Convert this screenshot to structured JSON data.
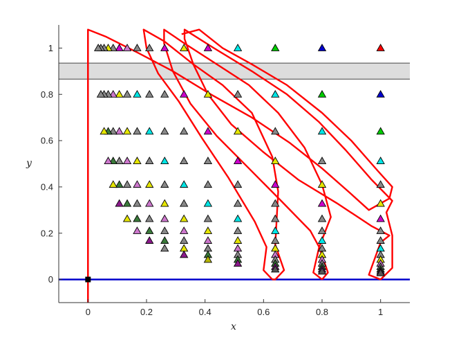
{
  "chart_data": {
    "type": "scatter",
    "xlabel": "x",
    "ylabel": "y",
    "xlim": [
      -0.1,
      1.1
    ],
    "ylim": [
      -0.1,
      1.1
    ],
    "xticks": [
      "0",
      "0.2",
      "0.4",
      "0.6",
      "0.8",
      "1"
    ],
    "yticks": [
      "0",
      "0.2",
      "0.4",
      "0.6",
      "0.8",
      "1"
    ],
    "xtick_values": [
      0,
      0.2,
      0.4,
      0.6,
      0.8,
      1
    ],
    "ytick_values": [
      0,
      0.2,
      0.4,
      0.6,
      0.8,
      1
    ],
    "band": {
      "y0": 0.866,
      "y1": 0.935,
      "color": "#dddddd"
    },
    "hline": {
      "y": 0,
      "color": "#0000cc"
    },
    "vline": {
      "x": 0,
      "y0": -0.1,
      "y1": 1.08,
      "color": "#ff0000"
    },
    "origin_marker": {
      "x": 0,
      "y": 0,
      "color": "#000000"
    },
    "triangle_colors": [
      "#ff0000",
      "#0000cc",
      "#00cc00",
      "#00e5e5",
      "#cc00cc",
      "#e5e500",
      "#888888",
      "#cc77cc",
      "#3a7a3a",
      "#008b8b",
      "#8b1a8b",
      "#b8b800",
      "#555555"
    ],
    "triangles": [
      {
        "x": 1.0,
        "y": 1.0,
        "c": 0
      },
      {
        "x": 0.8,
        "y": 1.0,
        "c": 1
      },
      {
        "x": 0.64,
        "y": 1.0,
        "c": 2
      },
      {
        "x": 0.512,
        "y": 1.0,
        "c": 3
      },
      {
        "x": 0.41,
        "y": 1.0,
        "c": 4
      },
      {
        "x": 0.328,
        "y": 1.0,
        "c": 5
      },
      {
        "x": 0.262,
        "y": 1.0,
        "c": 4
      },
      {
        "x": 0.21,
        "y": 1.0,
        "c": 6
      },
      {
        "x": 0.168,
        "y": 1.0,
        "c": 6
      },
      {
        "x": 0.134,
        "y": 1.0,
        "c": 7
      },
      {
        "x": 0.107,
        "y": 1.0,
        "c": 4
      },
      {
        "x": 0.086,
        "y": 1.0,
        "c": 6
      },
      {
        "x": 0.069,
        "y": 1.0,
        "c": 5
      },
      {
        "x": 0.055,
        "y": 1.0,
        "c": 6
      },
      {
        "x": 0.044,
        "y": 1.0,
        "c": 6
      },
      {
        "x": 0.035,
        "y": 1.0,
        "c": 6
      },
      {
        "x": 1.0,
        "y": 0.8,
        "c": 1
      },
      {
        "x": 0.8,
        "y": 0.8,
        "c": 2
      },
      {
        "x": 0.64,
        "y": 0.8,
        "c": 3
      },
      {
        "x": 0.512,
        "y": 0.8,
        "c": 6
      },
      {
        "x": 0.41,
        "y": 0.8,
        "c": 5
      },
      {
        "x": 0.328,
        "y": 0.8,
        "c": 4
      },
      {
        "x": 0.262,
        "y": 0.8,
        "c": 6
      },
      {
        "x": 0.21,
        "y": 0.8,
        "c": 6
      },
      {
        "x": 0.168,
        "y": 0.8,
        "c": 3
      },
      {
        "x": 0.134,
        "y": 0.8,
        "c": 6
      },
      {
        "x": 0.107,
        "y": 0.8,
        "c": 5
      },
      {
        "x": 0.086,
        "y": 0.8,
        "c": 7
      },
      {
        "x": 0.069,
        "y": 0.8,
        "c": 6
      },
      {
        "x": 0.055,
        "y": 0.8,
        "c": 6
      },
      {
        "x": 0.044,
        "y": 0.8,
        "c": 6
      },
      {
        "x": 1.0,
        "y": 0.64,
        "c": 2
      },
      {
        "x": 0.8,
        "y": 0.64,
        "c": 3
      },
      {
        "x": 0.64,
        "y": 0.64,
        "c": 6
      },
      {
        "x": 0.512,
        "y": 0.64,
        "c": 5
      },
      {
        "x": 0.41,
        "y": 0.64,
        "c": 4
      },
      {
        "x": 0.328,
        "y": 0.64,
        "c": 6
      },
      {
        "x": 0.262,
        "y": 0.64,
        "c": 6
      },
      {
        "x": 0.21,
        "y": 0.64,
        "c": 3
      },
      {
        "x": 0.168,
        "y": 0.64,
        "c": 6
      },
      {
        "x": 0.134,
        "y": 0.64,
        "c": 5
      },
      {
        "x": 0.107,
        "y": 0.64,
        "c": 7
      },
      {
        "x": 0.086,
        "y": 0.64,
        "c": 6
      },
      {
        "x": 0.069,
        "y": 0.64,
        "c": 8
      },
      {
        "x": 0.055,
        "y": 0.64,
        "c": 5
      },
      {
        "x": 1.0,
        "y": 0.512,
        "c": 3
      },
      {
        "x": 0.8,
        "y": 0.512,
        "c": 6
      },
      {
        "x": 0.64,
        "y": 0.512,
        "c": 5
      },
      {
        "x": 0.512,
        "y": 0.512,
        "c": 4
      },
      {
        "x": 0.41,
        "y": 0.512,
        "c": 6
      },
      {
        "x": 0.328,
        "y": 0.512,
        "c": 6
      },
      {
        "x": 0.262,
        "y": 0.512,
        "c": 3
      },
      {
        "x": 0.21,
        "y": 0.512,
        "c": 6
      },
      {
        "x": 0.168,
        "y": 0.512,
        "c": 5
      },
      {
        "x": 0.134,
        "y": 0.512,
        "c": 7
      },
      {
        "x": 0.107,
        "y": 0.512,
        "c": 6
      },
      {
        "x": 0.086,
        "y": 0.512,
        "c": 8
      },
      {
        "x": 0.069,
        "y": 0.512,
        "c": 7
      },
      {
        "x": 1.0,
        "y": 0.41,
        "c": 6
      },
      {
        "x": 0.8,
        "y": 0.41,
        "c": 5
      },
      {
        "x": 0.64,
        "y": 0.41,
        "c": 4
      },
      {
        "x": 0.512,
        "y": 0.41,
        "c": 6
      },
      {
        "x": 0.41,
        "y": 0.41,
        "c": 6
      },
      {
        "x": 0.328,
        "y": 0.41,
        "c": 3
      },
      {
        "x": 0.262,
        "y": 0.41,
        "c": 6
      },
      {
        "x": 0.21,
        "y": 0.41,
        "c": 5
      },
      {
        "x": 0.168,
        "y": 0.41,
        "c": 7
      },
      {
        "x": 0.134,
        "y": 0.41,
        "c": 6
      },
      {
        "x": 0.107,
        "y": 0.41,
        "c": 8
      },
      {
        "x": 0.086,
        "y": 0.41,
        "c": 5
      },
      {
        "x": 1.0,
        "y": 0.328,
        "c": 5
      },
      {
        "x": 0.8,
        "y": 0.328,
        "c": 4
      },
      {
        "x": 0.64,
        "y": 0.328,
        "c": 6
      },
      {
        "x": 0.512,
        "y": 0.328,
        "c": 6
      },
      {
        "x": 0.41,
        "y": 0.328,
        "c": 3
      },
      {
        "x": 0.328,
        "y": 0.328,
        "c": 6
      },
      {
        "x": 0.262,
        "y": 0.328,
        "c": 5
      },
      {
        "x": 0.21,
        "y": 0.328,
        "c": 7
      },
      {
        "x": 0.168,
        "y": 0.328,
        "c": 6
      },
      {
        "x": 0.134,
        "y": 0.328,
        "c": 8
      },
      {
        "x": 0.107,
        "y": 0.328,
        "c": 10
      },
      {
        "x": 1.0,
        "y": 0.262,
        "c": 4
      },
      {
        "x": 0.8,
        "y": 0.262,
        "c": 6
      },
      {
        "x": 0.64,
        "y": 0.262,
        "c": 6
      },
      {
        "x": 0.512,
        "y": 0.262,
        "c": 3
      },
      {
        "x": 0.41,
        "y": 0.262,
        "c": 6
      },
      {
        "x": 0.328,
        "y": 0.262,
        "c": 5
      },
      {
        "x": 0.262,
        "y": 0.262,
        "c": 7
      },
      {
        "x": 0.21,
        "y": 0.262,
        "c": 6
      },
      {
        "x": 0.168,
        "y": 0.262,
        "c": 8
      },
      {
        "x": 0.134,
        "y": 0.262,
        "c": 5
      },
      {
        "x": 1.0,
        "y": 0.21,
        "c": 6
      },
      {
        "x": 0.8,
        "y": 0.21,
        "c": 6
      },
      {
        "x": 0.64,
        "y": 0.21,
        "c": 3
      },
      {
        "x": 0.512,
        "y": 0.21,
        "c": 6
      },
      {
        "x": 0.41,
        "y": 0.21,
        "c": 5
      },
      {
        "x": 0.328,
        "y": 0.21,
        "c": 7
      },
      {
        "x": 0.262,
        "y": 0.21,
        "c": 6
      },
      {
        "x": 0.21,
        "y": 0.21,
        "c": 8
      },
      {
        "x": 0.168,
        "y": 0.21,
        "c": 7
      },
      {
        "x": 1.0,
        "y": 0.168,
        "c": 6
      },
      {
        "x": 0.8,
        "y": 0.168,
        "c": 3
      },
      {
        "x": 0.64,
        "y": 0.168,
        "c": 6
      },
      {
        "x": 0.512,
        "y": 0.168,
        "c": 5
      },
      {
        "x": 0.41,
        "y": 0.168,
        "c": 7
      },
      {
        "x": 0.328,
        "y": 0.168,
        "c": 6
      },
      {
        "x": 0.262,
        "y": 0.168,
        "c": 8
      },
      {
        "x": 0.21,
        "y": 0.168,
        "c": 10
      },
      {
        "x": 1.0,
        "y": 0.134,
        "c": 3
      },
      {
        "x": 0.8,
        "y": 0.134,
        "c": 6
      },
      {
        "x": 0.64,
        "y": 0.134,
        "c": 5
      },
      {
        "x": 0.512,
        "y": 0.134,
        "c": 7
      },
      {
        "x": 0.41,
        "y": 0.134,
        "c": 6
      },
      {
        "x": 0.328,
        "y": 0.134,
        "c": 5
      },
      {
        "x": 0.262,
        "y": 0.134,
        "c": 6
      },
      {
        "x": 1.0,
        "y": 0.107,
        "c": 6
      },
      {
        "x": 0.8,
        "y": 0.107,
        "c": 5
      },
      {
        "x": 0.64,
        "y": 0.107,
        "c": 7
      },
      {
        "x": 0.512,
        "y": 0.107,
        "c": 6
      },
      {
        "x": 0.41,
        "y": 0.107,
        "c": 8
      },
      {
        "x": 0.328,
        "y": 0.107,
        "c": 10
      },
      {
        "x": 1.0,
        "y": 0.086,
        "c": 5
      },
      {
        "x": 0.8,
        "y": 0.086,
        "c": 7
      },
      {
        "x": 0.64,
        "y": 0.086,
        "c": 6
      },
      {
        "x": 0.512,
        "y": 0.086,
        "c": 8
      },
      {
        "x": 0.41,
        "y": 0.086,
        "c": 11
      },
      {
        "x": 1.0,
        "y": 0.069,
        "c": 7
      },
      {
        "x": 0.8,
        "y": 0.069,
        "c": 6
      },
      {
        "x": 0.64,
        "y": 0.069,
        "c": 8
      },
      {
        "x": 0.512,
        "y": 0.069,
        "c": 10
      },
      {
        "x": 1.0,
        "y": 0.055,
        "c": 6
      },
      {
        "x": 0.8,
        "y": 0.055,
        "c": 8
      },
      {
        "x": 0.64,
        "y": 0.055,
        "c": 10
      },
      {
        "x": 1.0,
        "y": 0.044,
        "c": 8
      },
      {
        "x": 0.8,
        "y": 0.044,
        "c": 10
      },
      {
        "x": 0.64,
        "y": 0.044,
        "c": 12
      },
      {
        "x": 1.0,
        "y": 0.035,
        "c": 10
      },
      {
        "x": 0.8,
        "y": 0.035,
        "c": 12
      },
      {
        "x": 1.0,
        "y": 0.028,
        "c": 12
      }
    ],
    "curves": [
      {
        "name": "",
        "color": "#ff0000",
        "points": [
          [
            0.63,
            0.0
          ],
          [
            0.6,
            0.04
          ],
          [
            0.61,
            0.14
          ],
          [
            0.57,
            0.25
          ],
          [
            0.48,
            0.44
          ],
          [
            0.39,
            0.61
          ],
          [
            0.31,
            0.77
          ],
          [
            0.24,
            0.89
          ],
          [
            0.2,
            1.0
          ],
          [
            0.19,
            1.08
          ],
          [
            0.26,
            1.03
          ],
          [
            0.36,
            0.93
          ],
          [
            0.46,
            0.84
          ],
          [
            0.56,
            0.72
          ],
          [
            0.63,
            0.53
          ],
          [
            0.65,
            0.38
          ],
          [
            0.64,
            0.15
          ],
          [
            0.67,
            0.04
          ],
          [
            0.64,
            0.0
          ],
          [
            0.63,
            0.0
          ]
        ]
      },
      {
        "name": "",
        "color": "#ff0000",
        "points": [
          [
            0.8,
            0.0
          ],
          [
            0.77,
            0.03
          ],
          [
            0.79,
            0.14
          ],
          [
            0.76,
            0.21
          ],
          [
            0.66,
            0.34
          ],
          [
            0.55,
            0.48
          ],
          [
            0.44,
            0.62
          ],
          [
            0.35,
            0.76
          ],
          [
            0.29,
            0.9
          ],
          [
            0.26,
            1.02
          ],
          [
            0.26,
            1.08
          ],
          [
            0.33,
            1.02
          ],
          [
            0.44,
            0.93
          ],
          [
            0.55,
            0.84
          ],
          [
            0.65,
            0.72
          ],
          [
            0.74,
            0.57
          ],
          [
            0.8,
            0.41
          ],
          [
            0.83,
            0.27
          ],
          [
            0.79,
            0.14
          ],
          [
            0.82,
            0.03
          ],
          [
            0.8,
            0.0
          ]
        ]
      },
      {
        "name": "",
        "color": "#ff0000",
        "points": [
          [
            1.0,
            0.0
          ],
          [
            0.96,
            0.02
          ],
          [
            1.0,
            0.16
          ],
          [
            1.03,
            0.19
          ],
          [
            0.97,
            0.23
          ],
          [
            0.85,
            0.33
          ],
          [
            0.72,
            0.43
          ],
          [
            0.6,
            0.55
          ],
          [
            0.49,
            0.67
          ],
          [
            0.41,
            0.8
          ],
          [
            0.36,
            0.93
          ],
          [
            0.33,
            1.04
          ],
          [
            0.33,
            1.08
          ],
          [
            0.43,
            1.0
          ],
          [
            0.56,
            0.9
          ],
          [
            0.68,
            0.8
          ],
          [
            0.79,
            0.68
          ],
          [
            0.88,
            0.56
          ],
          [
            0.97,
            0.43
          ],
          [
            1.04,
            0.34
          ],
          [
            1.02,
            0.29
          ],
          [
            1.04,
            0.19
          ],
          [
            1.04,
            0.05
          ],
          [
            1.0,
            0.0
          ]
        ]
      },
      {
        "name": "",
        "color": "#ff0000",
        "points": [
          [
            0.0,
            -0.1
          ],
          [
            0.0,
            1.08
          ],
          [
            0.06,
            1.05
          ],
          [
            0.17,
            0.98
          ],
          [
            0.29,
            0.9
          ],
          [
            0.42,
            0.8
          ],
          [
            0.56,
            0.7
          ],
          [
            0.69,
            0.59
          ],
          [
            0.8,
            0.48
          ],
          [
            0.89,
            0.38
          ],
          [
            0.96,
            0.3
          ],
          [
            1.03,
            0.35
          ],
          [
            1.04,
            0.4
          ],
          [
            0.99,
            0.47
          ],
          [
            0.9,
            0.6
          ],
          [
            0.8,
            0.72
          ],
          [
            0.68,
            0.84
          ],
          [
            0.56,
            0.93
          ],
          [
            0.46,
            1.0
          ],
          [
            0.38,
            1.08
          ],
          [
            0.32,
            1.06
          ]
        ]
      }
    ]
  }
}
